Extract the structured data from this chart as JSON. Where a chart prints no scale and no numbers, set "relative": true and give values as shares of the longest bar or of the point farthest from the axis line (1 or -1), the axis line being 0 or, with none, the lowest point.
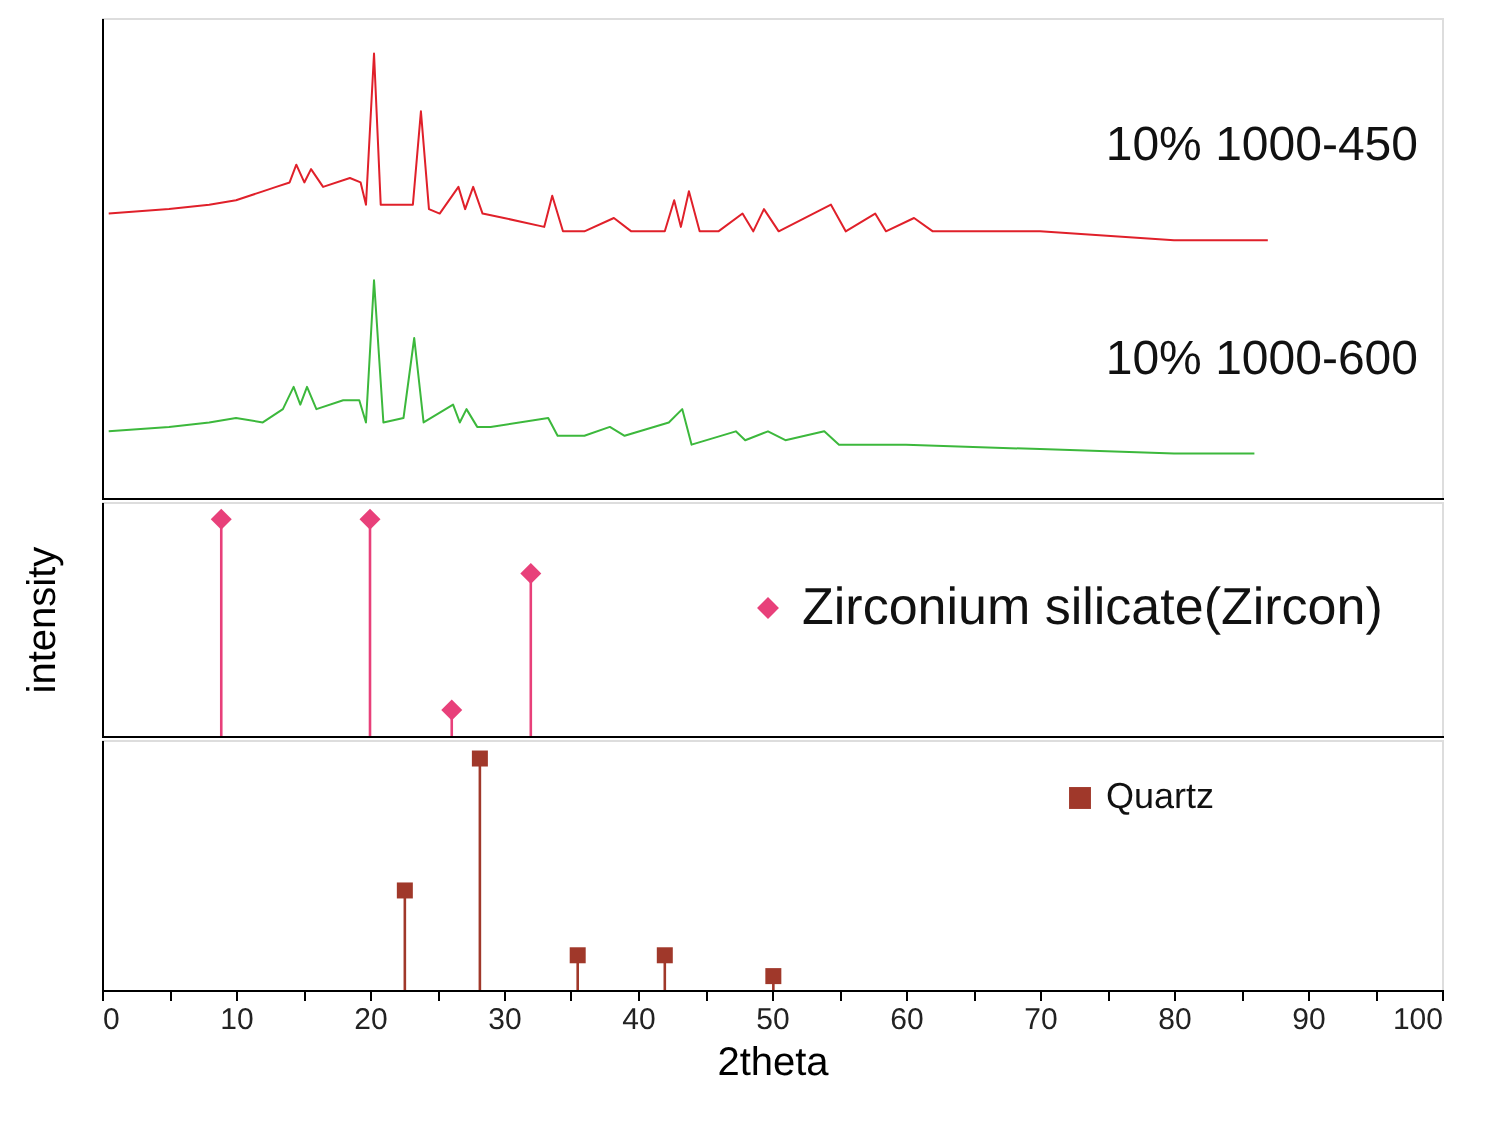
{
  "chart_data": [
    {
      "type": "line",
      "relative": true,
      "xlim": [
        0,
        100
      ],
      "tick_labels": false,
      "series": [
        {
          "name": "10% 1000-450",
          "color": "#e0202a",
          "x": [
            0.5,
            5,
            8,
            10,
            12,
            13,
            14,
            14.5,
            15.1,
            15.6,
            16.5,
            18.5,
            19.3,
            19.7,
            20.3,
            20.8,
            22,
            23.2,
            23.8,
            24.4,
            25.2,
            26.6,
            27.1,
            27.7,
            28.4,
            30,
            33,
            33.6,
            34.4,
            36,
            38.2,
            39.5,
            42,
            42.7,
            43.2,
            43.8,
            44.6,
            46,
            47.8,
            48.6,
            49.4,
            50.5,
            54.4,
            55.5,
            57.7,
            58.5,
            60.6,
            62,
            70,
            80,
            87
          ],
          "values": [
            0.64,
            0.65,
            0.66,
            0.67,
            0.69,
            0.7,
            0.71,
            0.75,
            0.71,
            0.74,
            0.7,
            0.72,
            0.71,
            0.66,
            1.0,
            0.66,
            0.66,
            0.66,
            0.87,
            0.65,
            0.64,
            0.7,
            0.65,
            0.7,
            0.64,
            0.63,
            0.61,
            0.68,
            0.6,
            0.6,
            0.63,
            0.6,
            0.6,
            0.67,
            0.61,
            0.69,
            0.6,
            0.6,
            0.64,
            0.6,
            0.65,
            0.6,
            0.66,
            0.6,
            0.64,
            0.6,
            0.63,
            0.6,
            0.6,
            0.58,
            0.58
          ]
        },
        {
          "name": "10% 1000-600",
          "color": "#3cb83c",
          "x": [
            0.5,
            5,
            8,
            10,
            12,
            13.5,
            14.3,
            14.8,
            15.3,
            16,
            18,
            19.2,
            19.7,
            20.3,
            21,
            22.5,
            23.3,
            24,
            26.2,
            26.7,
            27.2,
            28,
            29,
            33.3,
            34,
            36,
            37.9,
            39,
            42.3,
            43.3,
            44,
            47.3,
            48,
            49.7,
            51,
            53.9,
            55,
            60,
            70,
            80,
            86
          ],
          "values": [
            0.15,
            0.16,
            0.17,
            0.18,
            0.17,
            0.2,
            0.25,
            0.21,
            0.25,
            0.2,
            0.22,
            0.22,
            0.17,
            0.49,
            0.17,
            0.18,
            0.36,
            0.17,
            0.21,
            0.17,
            0.2,
            0.16,
            0.16,
            0.18,
            0.14,
            0.14,
            0.16,
            0.14,
            0.17,
            0.2,
            0.12,
            0.15,
            0.13,
            0.15,
            0.13,
            0.15,
            0.12,
            0.12,
            0.11,
            0.1,
            0.1
          ]
        }
      ]
    },
    {
      "type": "lollipop",
      "relative": true,
      "xlim": [
        0,
        100
      ],
      "tick_labels": false,
      "ylabel": "intensity",
      "marker": "diamond",
      "legend": "right",
      "series": [
        {
          "name": "Zirconium silicate(Zircon)",
          "color": "#e8407a",
          "x": [
            8.9,
            20.0,
            26.1,
            32.0
          ],
          "values": [
            1,
            1,
            0.12,
            0.75
          ]
        }
      ]
    },
    {
      "type": "lollipop",
      "relative": true,
      "xlim": [
        0,
        100
      ],
      "xticks": [
        0,
        {
          "value": 5,
          "label": null
        },
        10,
        {
          "value": 15,
          "label": null
        },
        20,
        {
          "value": 25,
          "label": null
        },
        30,
        {
          "value": 35,
          "label": null
        },
        40,
        {
          "value": 45,
          "label": null
        },
        50,
        {
          "value": 55,
          "label": null
        },
        60,
        {
          "value": 65,
          "label": null
        },
        70,
        {
          "value": 75,
          "label": null
        },
        80,
        {
          "value": 85,
          "label": null
        },
        90,
        {
          "value": 95,
          "label": null
        },
        100
      ],
      "tick_labels": "x",
      "xlabel": "2theta",
      "marker": "square",
      "legend": "right",
      "series": [
        {
          "name": "Quartz",
          "color": "#a0382a",
          "x": [
            22.6,
            28.2,
            35.5,
            42.0,
            50.1
          ],
          "values": [
            0.43,
            1,
            0.15,
            0.15,
            0.06
          ]
        }
      ]
    }
  ]
}
